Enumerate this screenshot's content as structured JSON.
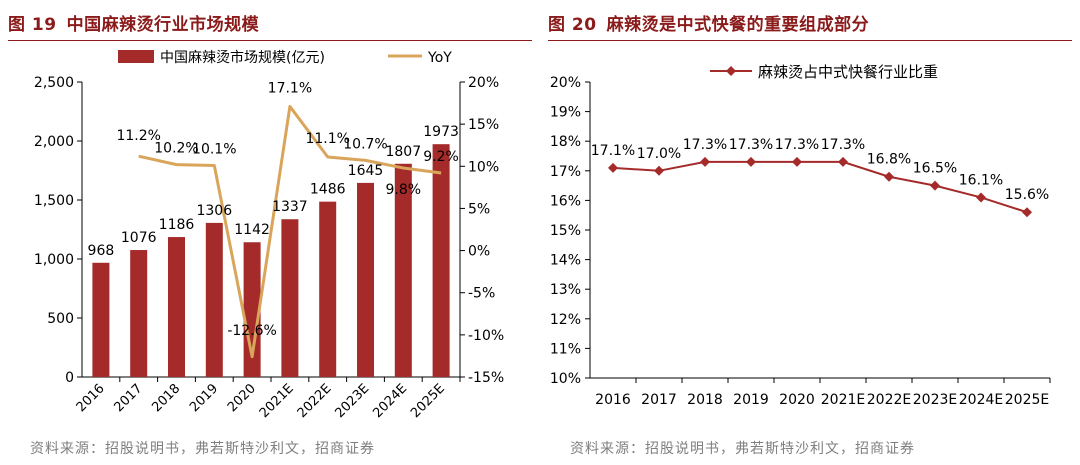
{
  "chart_data": [
    {
      "type": "bar",
      "figure_label": "图 19",
      "title": "中国麻辣烫行业市场规模",
      "categories": [
        "2016",
        "2017",
        "2018",
        "2019",
        "2020",
        "2021E",
        "2022E",
        "2023E",
        "2024E",
        "2025E"
      ],
      "series": [
        {
          "name": "中国麻辣烫市场规模(亿元)",
          "kind": "bar",
          "axis": "left",
          "values": [
            968,
            1076,
            1186,
            1306,
            1142,
            1337,
            1486,
            1645,
            1807,
            1973
          ],
          "labels": [
            "968",
            "1076",
            "1186",
            "1306",
            "1142",
            "1337",
            "1486",
            "1645",
            "1807",
            "1973"
          ],
          "color": "#a52a2a"
        },
        {
          "name": "YoY",
          "kind": "line",
          "axis": "right",
          "values": [
            null,
            11.2,
            10.2,
            10.1,
            -12.6,
            17.1,
            11.1,
            10.7,
            9.8,
            9.2
          ],
          "labels": [
            "",
            "11.2%",
            "10.2%",
            "10.1%",
            "-12.6%",
            "17.1%",
            "11.1%",
            "10.7%",
            "9.8%",
            "9.2%"
          ],
          "color": "#d9a55b"
        }
      ],
      "ylim": [
        0,
        2500
      ],
      "yticks": [
        0,
        500,
        1000,
        1500,
        2000,
        2500
      ],
      "ytick_labels": [
        "0",
        "500",
        "1,000",
        "1,500",
        "2,000",
        "2,500"
      ],
      "y2lim": [
        -15,
        20
      ],
      "y2ticks": [
        -15,
        -10,
        -5,
        0,
        5,
        10,
        15,
        20
      ],
      "y2tick_labels": [
        "-15%",
        "-10%",
        "-5%",
        "0%",
        "5%",
        "10%",
        "15%",
        "20%"
      ],
      "legend_position": "top",
      "source": "资料来源：招股说明书，弗若斯特沙利文，招商证券"
    },
    {
      "type": "line",
      "figure_label": "图 20",
      "title": "麻辣烫是中式快餐的重要组成部分",
      "categories": [
        "2016",
        "2017",
        "2018",
        "2019",
        "2020",
        "2021E",
        "2022E",
        "2023E",
        "2024E",
        "2025E"
      ],
      "series": [
        {
          "name": "麻辣烫占中式快餐行业比重",
          "values": [
            17.1,
            17.0,
            17.3,
            17.3,
            17.3,
            17.3,
            16.8,
            16.5,
            16.1,
            15.6
          ],
          "labels": [
            "17.1%",
            "17.0%",
            "17.3%",
            "17.3%",
            "17.3%",
            "17.3%",
            "16.8%",
            "16.5%",
            "16.1%",
            "15.6%"
          ],
          "color": "#a52a2a"
        }
      ],
      "ylim": [
        10,
        20
      ],
      "yticks": [
        10,
        11,
        12,
        13,
        14,
        15,
        16,
        17,
        18,
        19,
        20
      ],
      "ytick_labels": [
        "10%",
        "11%",
        "12%",
        "13%",
        "14%",
        "15%",
        "16%",
        "17%",
        "18%",
        "19%",
        "20%"
      ],
      "legend_position": "top",
      "source": "资料来源：招股说明书，弗若斯特沙利文，招商证券"
    }
  ]
}
